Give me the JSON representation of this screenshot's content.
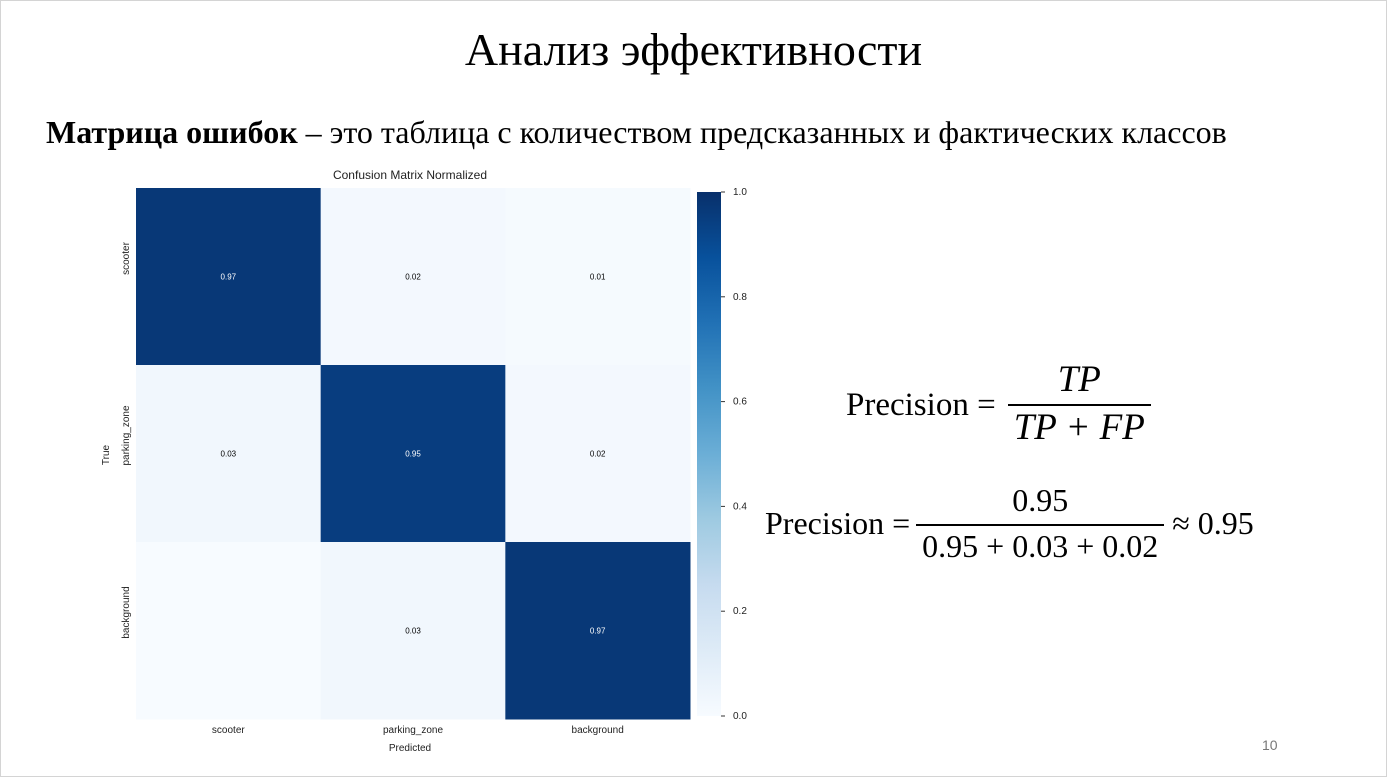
{
  "slide": {
    "title": "Анализ эффективности",
    "subtitle_bold": "Матрица ошибок",
    "subtitle_rest": " – это таблица с количеством предсказанных и фактических классов",
    "page_number": "10"
  },
  "formulas": {
    "general": {
      "lhs": "Precision =",
      "numerator": "TP",
      "denominator": "TP + FP"
    },
    "computed": {
      "lhs": "Precision =",
      "numerator": "0.95",
      "denominator": "0.95 + 0.03 + 0.02",
      "rhs": "≈ 0.95"
    }
  },
  "chart_data": {
    "type": "heatmap",
    "title": "Confusion Matrix Normalized",
    "xlabel": "Predicted",
    "ylabel": "True",
    "x_categories": [
      "scooter",
      "parking_zone",
      "background"
    ],
    "y_categories": [
      "scooter",
      "parking_zone",
      "background"
    ],
    "values": [
      [
        0.97,
        0.02,
        0.01
      ],
      [
        0.03,
        0.95,
        0.02
      ],
      [
        0.0,
        0.03,
        0.97
      ]
    ],
    "cell_labels": [
      [
        "0.97",
        "0.02",
        "0.01"
      ],
      [
        "0.03",
        "0.95",
        "0.02"
      ],
      [
        "",
        "0.03",
        "0.97"
      ]
    ],
    "colorbar": {
      "range": [
        0.0,
        1.0
      ],
      "ticks": [
        "0.0",
        "0.2",
        "0.4",
        "0.6",
        "0.8",
        "1.0"
      ]
    },
    "colormap": "Blues",
    "colors": {
      "low": "#f7fbff",
      "high": "#08306b"
    }
  }
}
